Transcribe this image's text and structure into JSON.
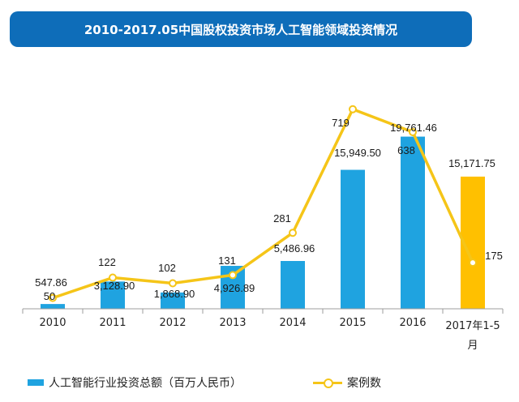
{
  "colors": {
    "banner": "#0e6db9",
    "bar": "#1fa3e0",
    "bar_highlight": "#ffc000",
    "line": "#f5c518"
  },
  "chart_data": {
    "type": "bar",
    "title": "2010-2017.05中国股权投资市场人工智能领域投资情况",
    "categories": [
      "2010",
      "2011",
      "2012",
      "2013",
      "2014",
      "2015",
      "2016",
      "2017年1-5月"
    ],
    "series": [
      {
        "name": "人工智能行业投资总额（百万人民币）",
        "type": "bar",
        "values": [
          547.86,
          3128.9,
          1868.9,
          4926.89,
          5486.96,
          15949.5,
          19761.46,
          15171.75
        ],
        "labels": [
          "547.86",
          "3,128.90",
          "1,868.90",
          "4,926.89",
          "5,486.96",
          "15,949.50",
          "19,761.46",
          "15,171.75"
        ]
      },
      {
        "name": "案例数",
        "type": "line",
        "values": [
          50,
          122,
          102,
          131,
          281,
          719,
          638,
          175
        ],
        "labels": [
          "50",
          "122",
          "102",
          "131",
          "281",
          "719",
          "638",
          "175"
        ]
      }
    ],
    "ylim_bar": [
      0,
      22000
    ],
    "ylim_line": [
      0,
      800
    ],
    "highlight_category": "2017年1-5月",
    "legend_position": "bottom",
    "grid": false
  },
  "legend": {
    "bar_label": "人工智能行业投资总额（百万人民币）",
    "line_label": "案例数"
  }
}
